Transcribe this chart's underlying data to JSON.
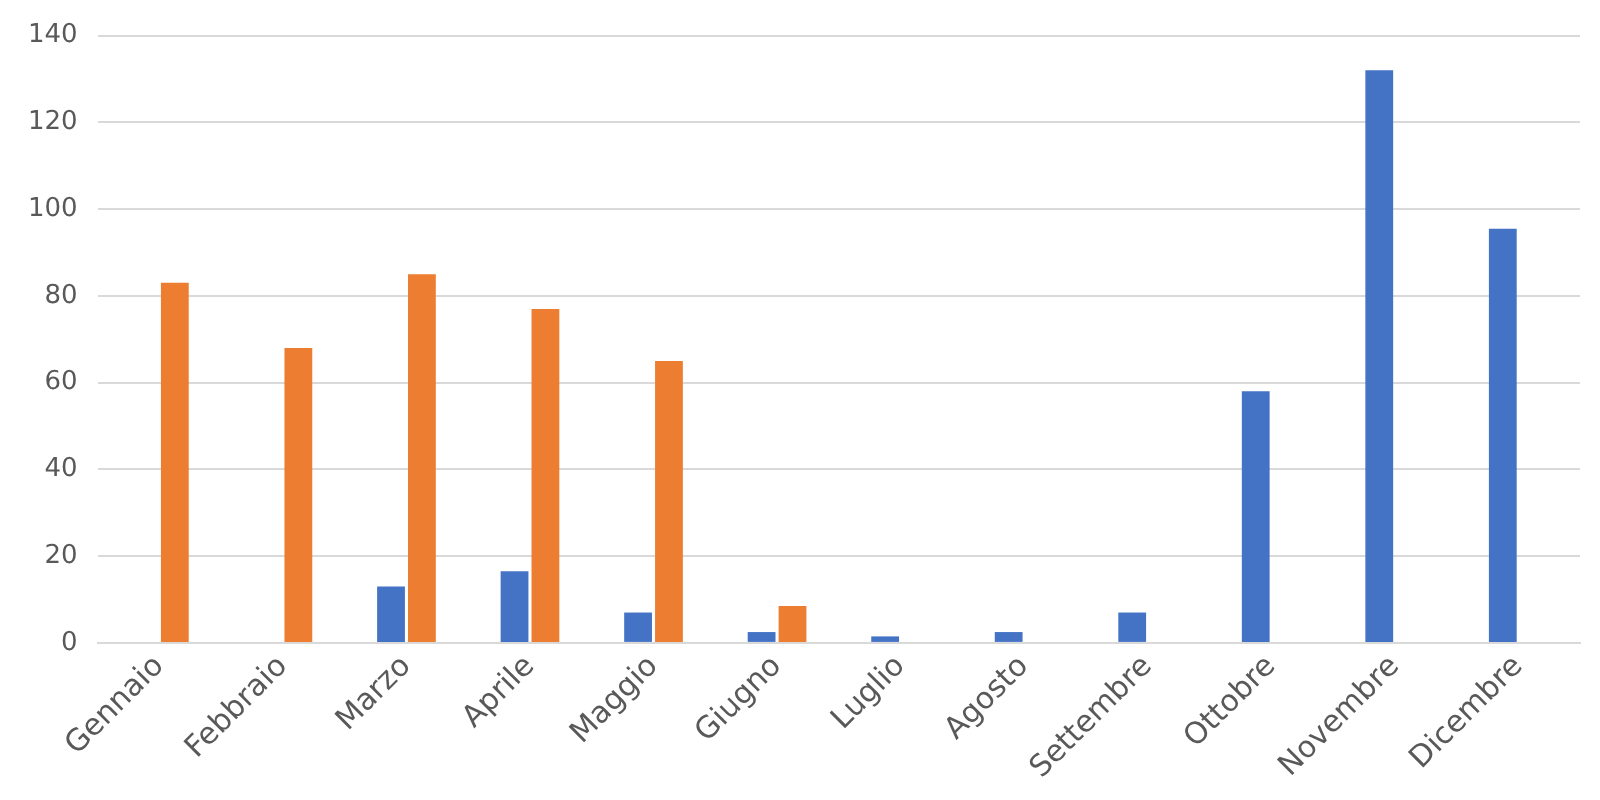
{
  "chart_data": {
    "type": "bar",
    "categories": [
      "Gennaio",
      "Febbraio",
      "Marzo",
      "Aprile",
      "Maggio",
      "Giugno",
      "Luglio",
      "Agosto",
      "Settembre",
      "Ottobre",
      "Novembre",
      "Dicembre"
    ],
    "series": [
      {
        "color": "#4472c4",
        "values": [
          null,
          null,
          13,
          16.5,
          7,
          2.5,
          1.5,
          2.5,
          7,
          58,
          132,
          95.5
        ]
      },
      {
        "color": "#ed7d31",
        "values": [
          83,
          68,
          85,
          77,
          65,
          8.5,
          null,
          null,
          null,
          null,
          null,
          null
        ]
      }
    ],
    "ylim": [
      0,
      140
    ],
    "yticks": [
      0,
      20,
      40,
      60,
      80,
      100,
      120,
      140
    ],
    "grid": "y",
    "legend": false
  }
}
